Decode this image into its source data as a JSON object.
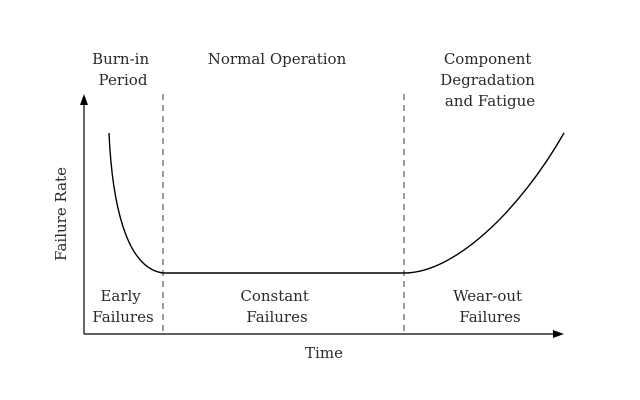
{
  "diagram": {
    "type": "bathtub-curve",
    "axes": {
      "x_label": "Time",
      "y_label": "Failure Rate"
    },
    "phases": {
      "left": {
        "top_label": [
          "Burn-in",
          "Period"
        ],
        "bottom_label": [
          "Early",
          "Failures"
        ]
      },
      "middle": {
        "top_label": [
          "Normal Operation"
        ],
        "bottom_label": [
          "Constant",
          "Failures"
        ]
      },
      "right": {
        "top_label": [
          "Component",
          "Degradation",
          "and Fatigue"
        ],
        "bottom_label": [
          "Wear-out",
          "Failures"
        ]
      }
    },
    "colors": {
      "curve": "#000000",
      "axes": "#000000",
      "divider": "#666666",
      "text": "#2a2a2a",
      "background": "#ffffff"
    }
  }
}
